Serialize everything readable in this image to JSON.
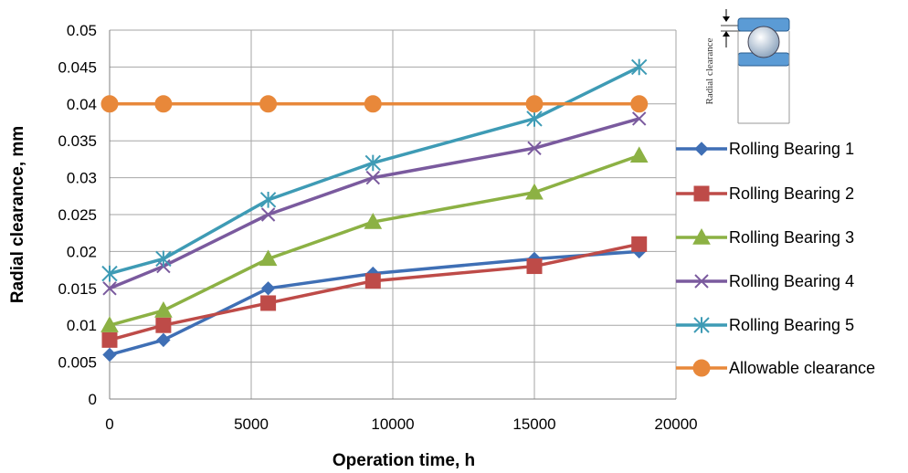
{
  "chart_data": {
    "type": "line",
    "xlabel": "Operation time, h",
    "ylabel": "Radial clearance, mm",
    "xlim": [
      0,
      20000
    ],
    "ylim": [
      0,
      0.05
    ],
    "xticks": [
      "0",
      "5000",
      "10000",
      "15000",
      "20000"
    ],
    "yticks": [
      "0",
      "0.005",
      "0.01",
      "0.015",
      "0.02",
      "0.025",
      "0.03",
      "0.035",
      "0.04",
      "0.045",
      "0.05"
    ],
    "grid": "horizontal + vertical",
    "legend_position": "right",
    "x": [
      0,
      1900,
      5600,
      9300,
      15000,
      18700
    ],
    "series": [
      {
        "name": "Rolling Bearing 1",
        "color": "#3f6fb5",
        "marker": "diamond",
        "values": [
          0.006,
          0.008,
          0.015,
          0.017,
          0.019,
          0.02
        ]
      },
      {
        "name": "Rolling Bearing 2",
        "color": "#be4b48",
        "marker": "square",
        "values": [
          0.008,
          0.01,
          0.013,
          0.016,
          0.018,
          0.021
        ]
      },
      {
        "name": "Rolling Bearing 3",
        "color": "#8cb144",
        "marker": "triangle",
        "values": [
          0.01,
          0.012,
          0.019,
          0.024,
          0.028,
          0.033
        ]
      },
      {
        "name": "Rolling Bearing 4",
        "color": "#7a5a9e",
        "marker": "x",
        "values": [
          0.015,
          0.018,
          0.025,
          0.03,
          0.034,
          0.038
        ]
      },
      {
        "name": "Rolling Bearing 5",
        "color": "#3e9bb5",
        "marker": "star",
        "values": [
          0.017,
          0.019,
          0.027,
          0.032,
          0.038,
          0.045
        ]
      },
      {
        "name": "Allowable clearance",
        "color": "#e8883a",
        "marker": "circle",
        "values": [
          0.04,
          0.04,
          0.04,
          0.04,
          0.04,
          0.04
        ]
      }
    ],
    "inset": {
      "label": "Radial clearance",
      "icon": "bearing-cross-section-icon"
    }
  }
}
